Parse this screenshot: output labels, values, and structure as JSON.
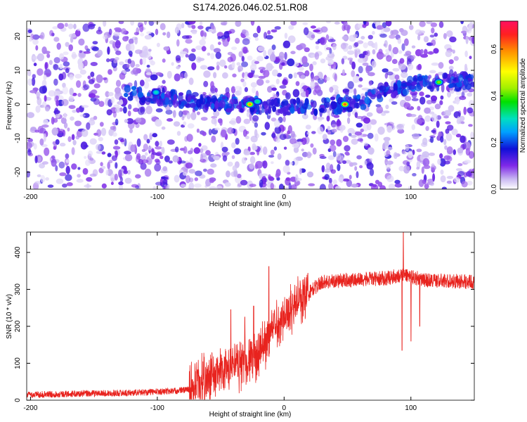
{
  "title": "S174.2026.046.02.51.R08",
  "chart_data": [
    {
      "type": "heatmap",
      "title": "S174.2026.046.02.51.R08",
      "xlabel": "Height of straight line (km)",
      "ylabel": "Frequency (Hz)",
      "xlim": [
        -203,
        150
      ],
      "ylim": [
        -25,
        24.5
      ],
      "xticks": [
        -200,
        -100,
        0,
        100
      ],
      "yticks": [
        -20,
        -10,
        0,
        10,
        20
      ],
      "colorbar": {
        "label": "Normalized spectral amplitude",
        "range": [
          0.0,
          0.72
        ],
        "ticks": [
          0.0,
          0.2,
          0.4,
          0.6
        ],
        "tick_labels": [
          "0.0",
          "0.2",
          "0.4",
          "0.6"
        ]
      },
      "ridge": [
        {
          "x": -120,
          "y": 3
        },
        {
          "x": -60,
          "y": 0.5
        },
        {
          "x": 0,
          "y": -1
        },
        {
          "x": 30,
          "y": -0.5
        },
        {
          "x": 60,
          "y": 0.5
        },
        {
          "x": 80,
          "y": 4
        },
        {
          "x": 110,
          "y": 6.5
        },
        {
          "x": 150,
          "y": 7
        }
      ],
      "peaks": [
        {
          "x": -101,
          "y": 3.5,
          "value": 0.3
        },
        {
          "x": -27,
          "y": 0,
          "value": 0.58
        },
        {
          "x": -21,
          "y": 0.8,
          "value": 0.32
        },
        {
          "x": 48,
          "y": 0,
          "value": 0.62
        },
        {
          "x": 122,
          "y": 6.5,
          "value": 0.42
        }
      ]
    },
    {
      "type": "line",
      "xlabel": "Height of straight line (km)",
      "ylabel": "SNR (10 * v/v)",
      "xlim": [
        -203,
        150
      ],
      "ylim": [
        0,
        455
      ],
      "xticks": [
        -200,
        -100,
        0,
        100
      ],
      "yticks": [
        0,
        100,
        200,
        300,
        400
      ],
      "color": "#e8231e",
      "envelope": [
        {
          "x": -203,
          "y": 15
        },
        {
          "x": -120,
          "y": 20
        },
        {
          "x": -85,
          "y": 25
        },
        {
          "x": -75,
          "y": 30
        },
        {
          "x": -60,
          "y": 60
        },
        {
          "x": -45,
          "y": 80
        },
        {
          "x": -35,
          "y": 100
        },
        {
          "x": -20,
          "y": 120
        },
        {
          "x": -10,
          "y": 190
        },
        {
          "x": 0,
          "y": 230
        },
        {
          "x": 15,
          "y": 280
        },
        {
          "x": 30,
          "y": 320
        },
        {
          "x": 50,
          "y": 325
        },
        {
          "x": 80,
          "y": 330
        },
        {
          "x": 95,
          "y": 340
        },
        {
          "x": 110,
          "y": 325
        },
        {
          "x": 150,
          "y": 320
        }
      ],
      "spikes": [
        {
          "x": -42,
          "y": 245
        },
        {
          "x": -31,
          "y": 225
        },
        {
          "x": -24,
          "y": 255
        },
        {
          "x": -12,
          "y": 362
        },
        {
          "x": 8,
          "y": 250
        },
        {
          "x": 94,
          "y": 455
        },
        {
          "x": 93,
          "y": 135
        },
        {
          "x": 100,
          "y": 160
        },
        {
          "x": 107,
          "y": 200
        }
      ]
    }
  ]
}
